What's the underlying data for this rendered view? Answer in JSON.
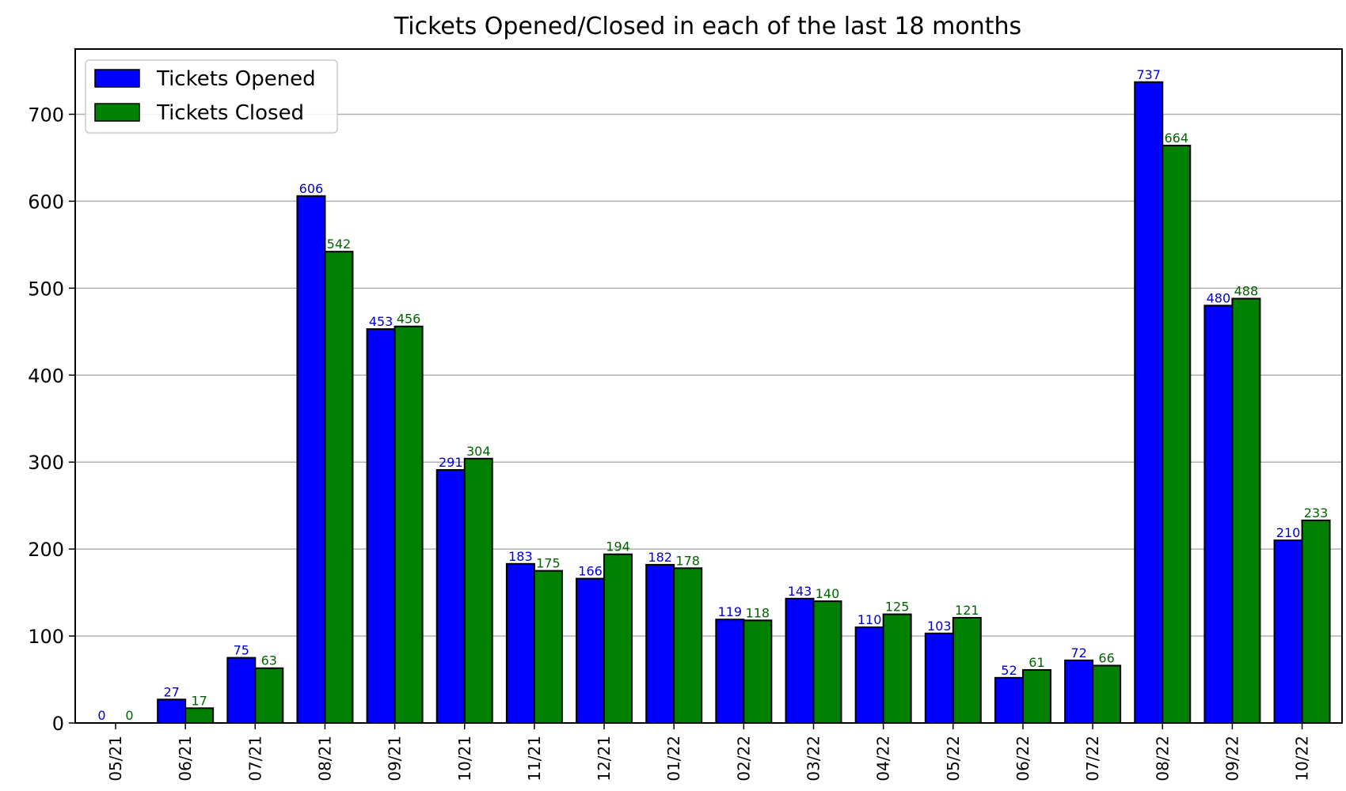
{
  "chart_data": {
    "type": "bar",
    "title": "Tickets Opened/Closed in each of the last 18 months",
    "xlabel": "",
    "ylabel": "",
    "categories": [
      "05/21",
      "06/21",
      "07/21",
      "08/21",
      "09/21",
      "10/21",
      "11/21",
      "12/21",
      "01/22",
      "02/22",
      "03/22",
      "04/22",
      "05/22",
      "06/22",
      "07/22",
      "08/22",
      "09/22",
      "10/22"
    ],
    "series": [
      {
        "name": "Tickets Opened",
        "color": "#0000ff",
        "label_color": "#0000cc",
        "values": [
          0,
          27,
          75,
          606,
          453,
          291,
          183,
          166,
          182,
          119,
          143,
          110,
          103,
          52,
          72,
          737,
          480,
          210
        ]
      },
      {
        "name": "Tickets Closed",
        "color": "#008000",
        "label_color": "#006400",
        "values": [
          0,
          17,
          63,
          542,
          456,
          304,
          175,
          194,
          178,
          118,
          140,
          125,
          121,
          61,
          66,
          664,
          488,
          233
        ]
      }
    ],
    "ylim": [
      0,
      775
    ],
    "yticks": [
      0,
      100,
      200,
      300,
      400,
      500,
      600,
      700
    ],
    "grid": "horizontal",
    "legend_position": "top-left"
  }
}
